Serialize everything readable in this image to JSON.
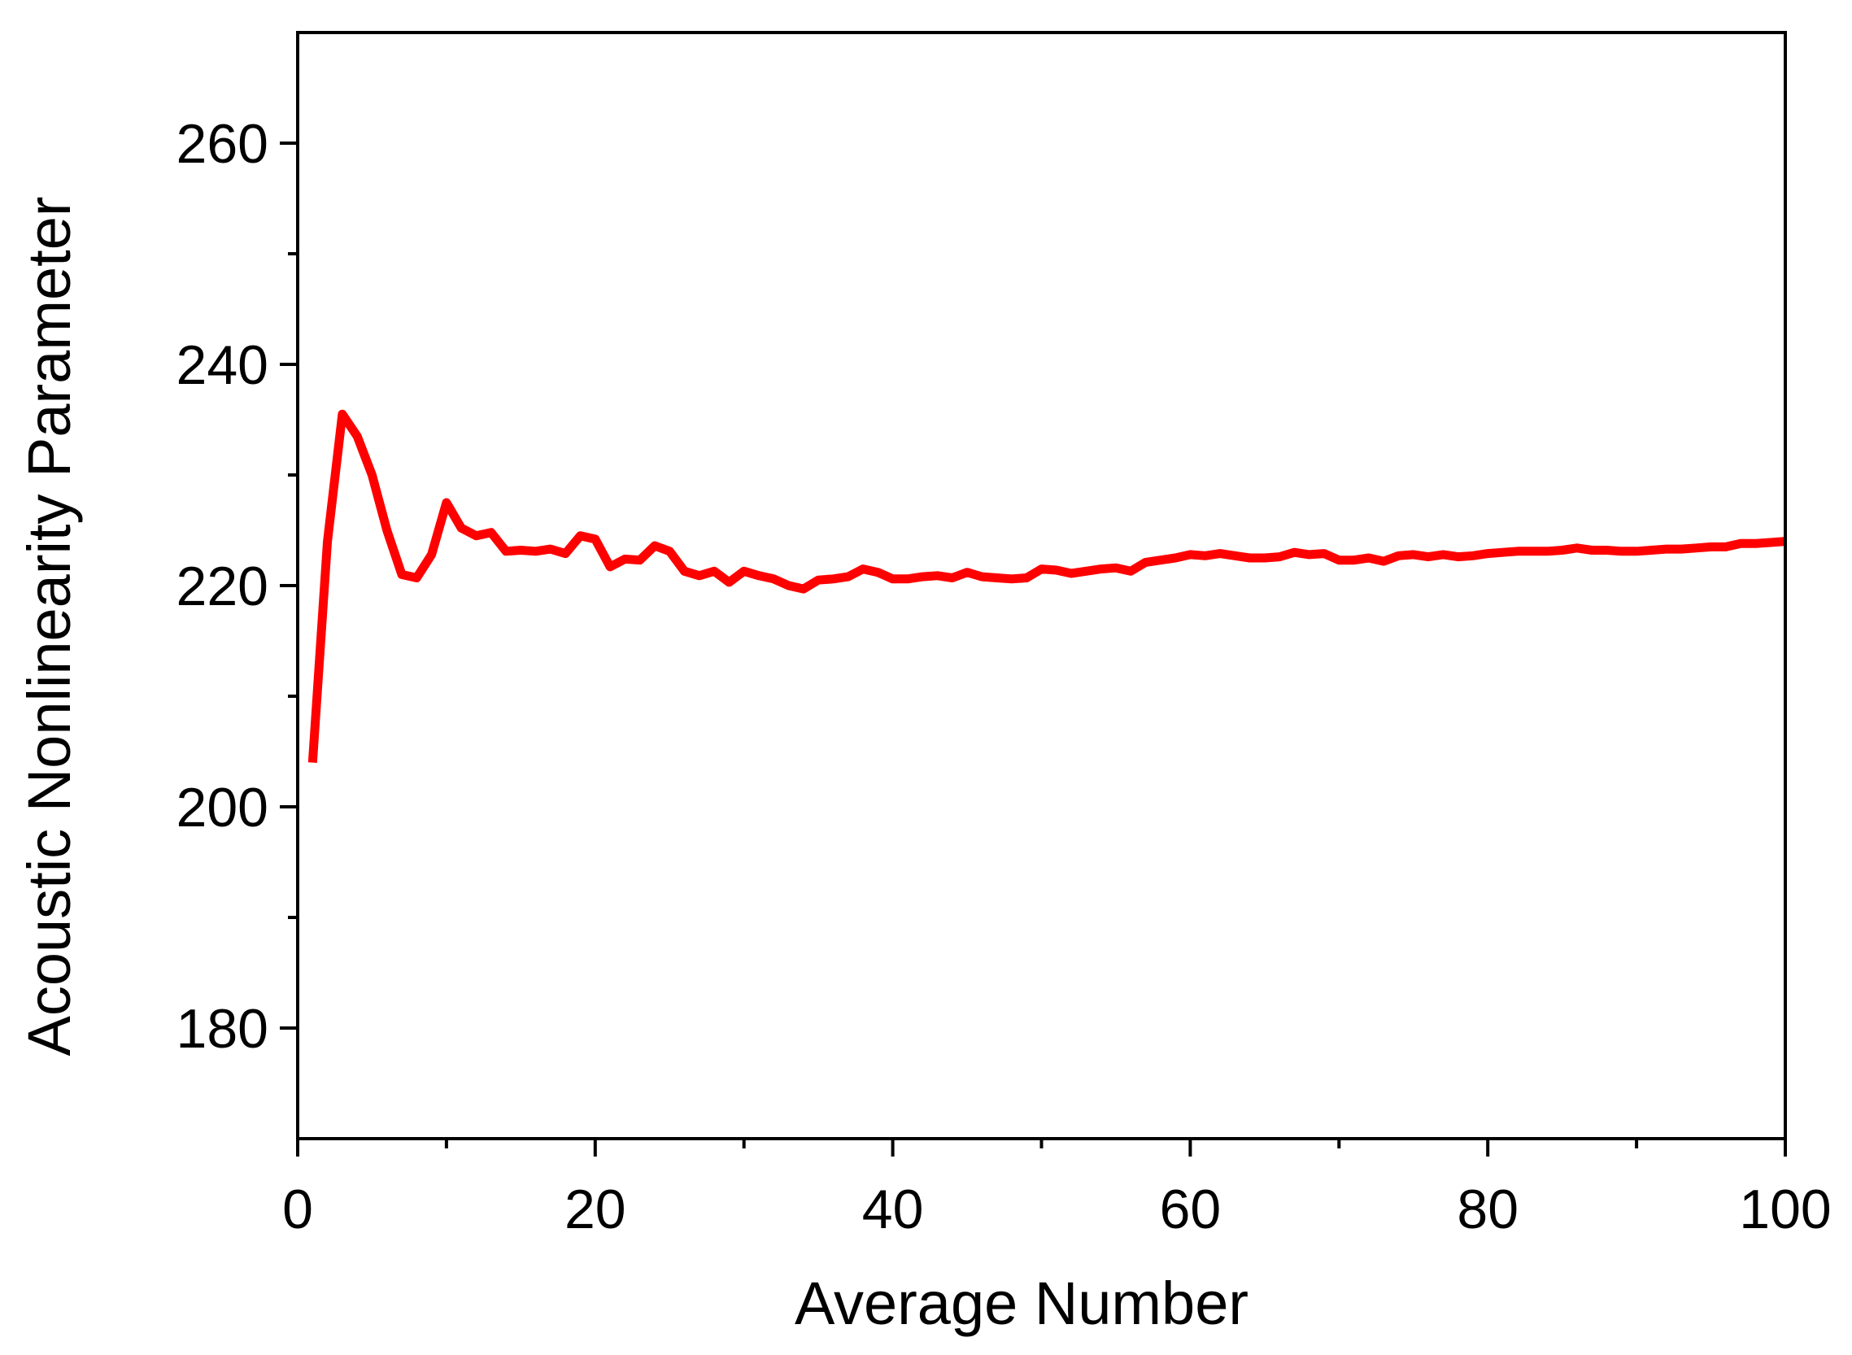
{
  "chart_data": {
    "type": "line",
    "title": "",
    "xlabel": "Average Number",
    "ylabel": "Acoustic Nonlinearity Parameter",
    "xlim": [
      0,
      100
    ],
    "ylim": [
      170,
      270
    ],
    "x_ticks": [
      0,
      20,
      40,
      60,
      80,
      100
    ],
    "x_minor_ticks": [
      10,
      30,
      50,
      70,
      90
    ],
    "y_ticks": [
      180,
      200,
      220,
      240,
      260
    ],
    "y_minor_ticks": [
      190,
      210,
      230,
      250
    ],
    "x_tick_labels": [
      "0",
      "20",
      "40",
      "60",
      "80",
      "100"
    ],
    "y_tick_labels": [
      "180",
      "200",
      "220",
      "240",
      "260"
    ],
    "grid": false,
    "legend": "none",
    "line_color": "#ff0000",
    "series": [
      {
        "x": [
          1,
          2,
          3,
          4,
          5,
          6,
          7,
          8,
          9,
          10,
          11,
          12,
          13,
          14,
          15,
          16,
          17,
          18,
          19,
          20,
          21,
          22,
          23,
          24,
          25,
          26,
          27,
          28,
          29,
          30,
          31,
          32,
          33,
          34,
          35,
          36,
          37,
          38,
          39,
          40,
          41,
          42,
          43,
          44,
          45,
          46,
          47,
          48,
          49,
          50,
          51,
          52,
          53,
          54,
          55,
          56,
          57,
          58,
          59,
          60,
          61,
          62,
          63,
          64,
          65,
          66,
          67,
          68,
          69,
          70,
          71,
          72,
          73,
          74,
          75,
          76,
          77,
          78,
          79,
          80,
          81,
          82,
          83,
          84,
          85,
          86,
          87,
          88,
          89,
          90,
          91,
          92,
          93,
          94,
          95,
          96,
          97,
          98,
          99,
          100
        ],
        "values": [
          204,
          224,
          235.5,
          233.5,
          230,
          225,
          221,
          220.7,
          222.8,
          227.5,
          225.2,
          224.5,
          224.8,
          223.1,
          223.2,
          223.1,
          223.3,
          222.9,
          224.5,
          224.2,
          221.7,
          222.4,
          222.3,
          223.6,
          223.1,
          221.3,
          220.9,
          221.3,
          220.3,
          221.3,
          220.9,
          220.6,
          220,
          219.7,
          220.5,
          220.6,
          220.8,
          221.5,
          221.2,
          220.6,
          220.6,
          220.8,
          220.9,
          220.7,
          221.2,
          220.8,
          220.7,
          220.6,
          220.7,
          221.5,
          221.4,
          221.1,
          221.3,
          221.5,
          221.6,
          221.3,
          222.1,
          222.3,
          222.5,
          222.8,
          222.7,
          222.9,
          222.7,
          222.5,
          222.5,
          222.6,
          223,
          222.8,
          222.9,
          222.3,
          222.3,
          222.5,
          222.2,
          222.7,
          222.8,
          222.6,
          222.8,
          222.6,
          222.7,
          222.9,
          223,
          223.1,
          223.1,
          223.1,
          223.2,
          223.4,
          223.2,
          223.2,
          223.1,
          223.1,
          223.2,
          223.3,
          223.3,
          223.4,
          223.5,
          223.5,
          223.8,
          223.8,
          223.9,
          224
        ]
      }
    ]
  }
}
